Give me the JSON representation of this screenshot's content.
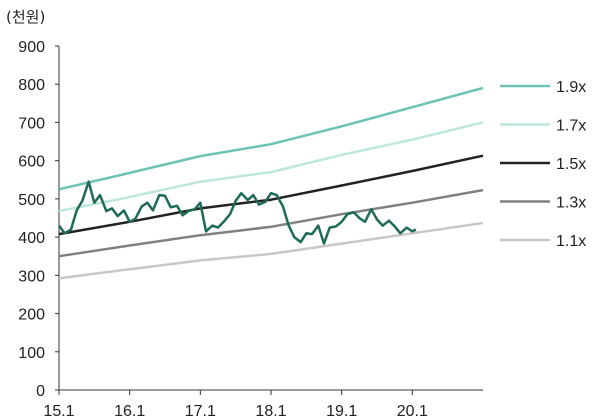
{
  "chart_data": {
    "type": "line",
    "unit_label": "(천원)",
    "xlabel": "",
    "ylabel": "",
    "ylim": [
      0,
      900
    ],
    "yticks": [
      0,
      100,
      200,
      300,
      400,
      500,
      600,
      700,
      800,
      900
    ],
    "xlim": [
      2015.0,
      2021.0
    ],
    "xticks": [
      {
        "value": 2015.0,
        "label": "15.1"
      },
      {
        "value": 2016.0,
        "label": "16.1"
      },
      {
        "value": 2017.0,
        "label": "17.1"
      },
      {
        "value": 2018.0,
        "label": "18.1"
      },
      {
        "value": 2019.0,
        "label": "19.1"
      },
      {
        "value": 2020.0,
        "label": "20.1"
      }
    ],
    "grid": false,
    "legend_position": "right",
    "bands": [
      {
        "name": "1.9x",
        "color": "#6cc2b3",
        "x": [
          2015.0,
          2016.0,
          2017.0,
          2018.0,
          2019.0,
          2020.0,
          2021.0
        ],
        "values": [
          525,
          568,
          612,
          643,
          690,
          740,
          790
        ]
      },
      {
        "name": "1.7x",
        "color": "#bde6dd",
        "x": [
          2015.0,
          2016.0,
          2017.0,
          2018.0,
          2019.0,
          2020.0,
          2021.0
        ],
        "values": [
          468,
          505,
          545,
          570,
          615,
          655,
          700
        ]
      },
      {
        "name": "1.5x",
        "color": "#222222",
        "x": [
          2015.0,
          2016.0,
          2017.0,
          2018.0,
          2019.0,
          2020.0,
          2021.0
        ],
        "values": [
          408,
          440,
          475,
          498,
          535,
          573,
          613
        ]
      },
      {
        "name": "1.3x",
        "color": "#808080",
        "x": [
          2015.0,
          2016.0,
          2017.0,
          2018.0,
          2019.0,
          2020.0,
          2021.0
        ],
        "values": [
          350,
          378,
          405,
          427,
          460,
          490,
          523
        ]
      },
      {
        "name": "1.1x",
        "color": "#c8c8c8",
        "x": [
          2015.0,
          2016.0,
          2017.0,
          2018.0,
          2019.0,
          2020.0,
          2021.0
        ],
        "values": [
          292,
          316,
          339,
          356,
          383,
          410,
          437
        ]
      }
    ],
    "price_series": {
      "color": "#1e6b58",
      "x": [
        2015.0,
        2015.08,
        2015.17,
        2015.25,
        2015.33,
        2015.42,
        2015.5,
        2015.58,
        2015.67,
        2015.75,
        2015.83,
        2015.92,
        2016.0,
        2016.08,
        2016.17,
        2016.25,
        2016.33,
        2016.42,
        2016.5,
        2016.58,
        2016.67,
        2016.75,
        2016.83,
        2016.92,
        2017.0,
        2017.08,
        2017.17,
        2017.25,
        2017.33,
        2017.42,
        2017.5,
        2017.58,
        2017.67,
        2017.75,
        2017.83,
        2017.92,
        2018.0,
        2018.08,
        2018.17,
        2018.25,
        2018.33,
        2018.42,
        2018.5,
        2018.58,
        2018.67,
        2018.75,
        2018.83,
        2018.92,
        2019.0,
        2019.08,
        2019.17,
        2019.25,
        2019.33,
        2019.42,
        2019.5,
        2019.58,
        2019.67,
        2019.75,
        2019.83,
        2019.92,
        2020.0,
        2020.05
      ],
      "values": [
        430,
        410,
        420,
        470,
        495,
        545,
        490,
        510,
        468,
        475,
        455,
        470,
        440,
        448,
        480,
        490,
        470,
        510,
        508,
        478,
        482,
        457,
        468,
        473,
        490,
        415,
        430,
        425,
        440,
        460,
        495,
        515,
        497,
        510,
        485,
        492,
        515,
        510,
        480,
        430,
        400,
        387,
        410,
        408,
        430,
        383,
        425,
        428,
        440,
        460,
        465,
        450,
        440,
        473,
        446,
        430,
        443,
        428,
        410,
        425,
        415,
        420
      ]
    }
  }
}
